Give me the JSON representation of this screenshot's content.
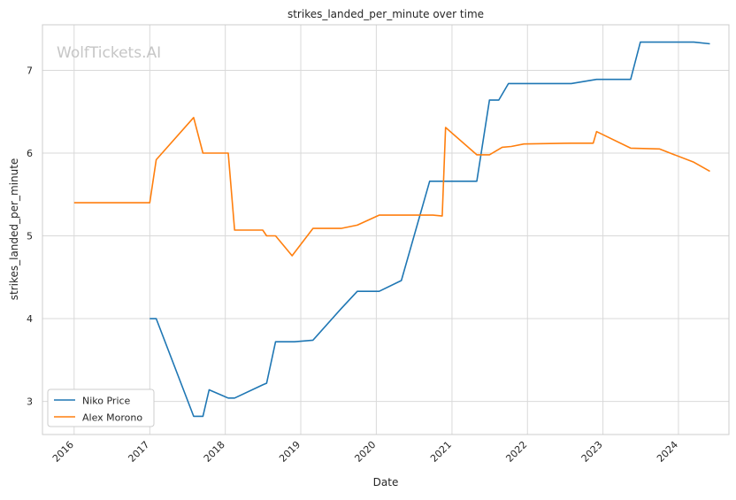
{
  "chart_data": {
    "type": "line",
    "title": "strikes_landed_per_minute over time",
    "xlabel": "Date",
    "ylabel": "strikes_landed_per_minute",
    "watermark": "WolfTickets.AI",
    "xlim": [
      "2015-08-01",
      "2024-09-01"
    ],
    "ylim": [
      2.6,
      7.55
    ],
    "x_ticks": [
      "2016",
      "2017",
      "2018",
      "2019",
      "2020",
      "2021",
      "2022",
      "2023",
      "2024"
    ],
    "y_ticks": [
      3,
      4,
      5,
      6,
      7
    ],
    "grid": true,
    "legend_position": "lower-left",
    "series": [
      {
        "name": "Niko Price",
        "color": "#1f77b4",
        "points": [
          [
            "2017-01-01",
            4.0
          ],
          [
            "2017-02-01",
            4.0
          ],
          [
            "2017-08-01",
            2.82
          ],
          [
            "2017-09-15",
            2.82
          ],
          [
            "2017-10-15",
            3.14
          ],
          [
            "2018-01-15",
            3.04
          ],
          [
            "2018-02-15",
            3.04
          ],
          [
            "2018-07-01",
            3.2
          ],
          [
            "2018-07-20",
            3.22
          ],
          [
            "2018-09-01",
            3.72
          ],
          [
            "2018-12-01",
            3.72
          ],
          [
            "2019-03-01",
            3.74
          ],
          [
            "2019-07-15",
            4.12
          ],
          [
            "2019-10-01",
            4.33
          ],
          [
            "2020-01-15",
            4.33
          ],
          [
            "2020-05-01",
            4.46
          ],
          [
            "2020-09-15",
            5.66
          ],
          [
            "2021-05-01",
            5.66
          ],
          [
            "2021-07-01",
            6.64
          ],
          [
            "2021-08-15",
            6.64
          ],
          [
            "2021-10-01",
            6.84
          ],
          [
            "2022-08-01",
            6.84
          ],
          [
            "2022-12-01",
            6.89
          ],
          [
            "2023-05-15",
            6.89
          ],
          [
            "2023-07-01",
            7.34
          ],
          [
            "2024-03-15",
            7.34
          ],
          [
            "2024-06-01",
            7.32
          ]
        ]
      },
      {
        "name": "Alex Morono",
        "color": "#ff7f0e",
        "points": [
          [
            "2016-01-01",
            5.4
          ],
          [
            "2017-01-01",
            5.4
          ],
          [
            "2017-02-01",
            5.92
          ],
          [
            "2017-08-01",
            6.43
          ],
          [
            "2017-09-15",
            6.0
          ],
          [
            "2018-01-15",
            6.0
          ],
          [
            "2018-02-15",
            5.07
          ],
          [
            "2018-07-01",
            5.07
          ],
          [
            "2018-07-20",
            5.0
          ],
          [
            "2018-09-01",
            5.0
          ],
          [
            "2018-11-20",
            4.76
          ],
          [
            "2019-03-01",
            5.09
          ],
          [
            "2019-07-15",
            5.09
          ],
          [
            "2019-10-01",
            5.13
          ],
          [
            "2020-01-15",
            5.25
          ],
          [
            "2020-10-01",
            5.25
          ],
          [
            "2020-11-15",
            5.24
          ],
          [
            "2020-12-01",
            6.31
          ],
          [
            "2021-05-01",
            5.98
          ],
          [
            "2021-07-01",
            5.98
          ],
          [
            "2021-09-01",
            6.07
          ],
          [
            "2021-10-15",
            6.08
          ],
          [
            "2021-12-15",
            6.11
          ],
          [
            "2022-08-01",
            6.12
          ],
          [
            "2022-11-15",
            6.12
          ],
          [
            "2022-12-01",
            6.26
          ],
          [
            "2023-05-15",
            6.06
          ],
          [
            "2023-10-01",
            6.05
          ],
          [
            "2024-03-15",
            5.89
          ],
          [
            "2024-06-01",
            5.78
          ]
        ]
      }
    ]
  }
}
